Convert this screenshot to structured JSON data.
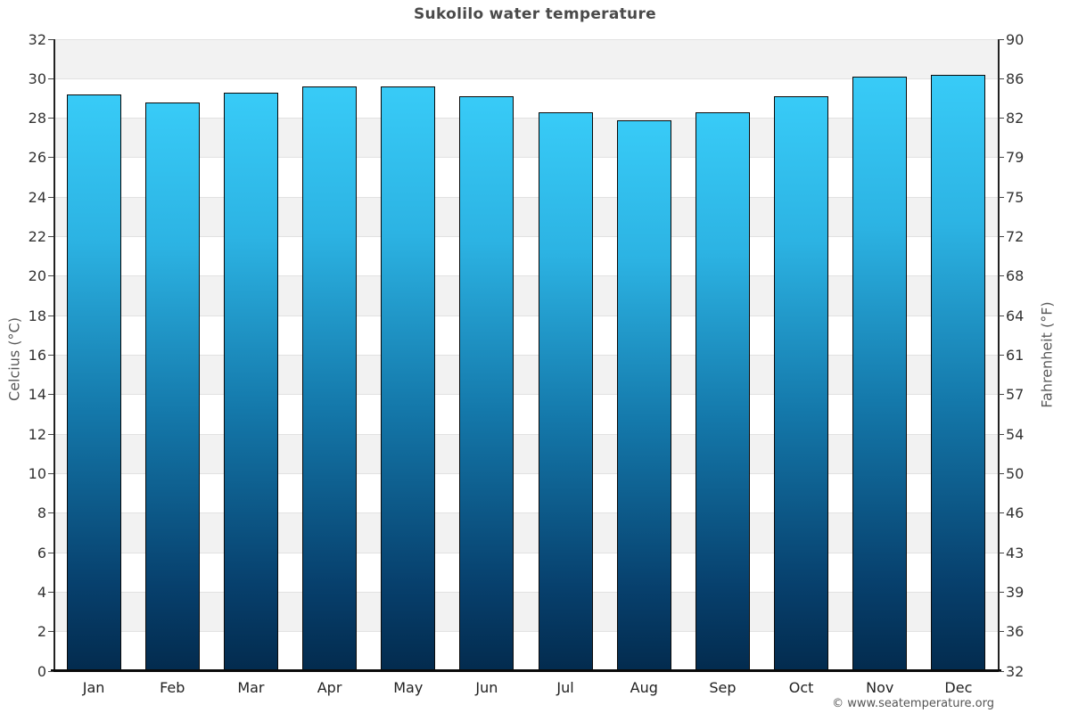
{
  "page": {
    "title": "Sukolilo water temperature",
    "copyright": "© www.seatemperature.org"
  },
  "chart_data": {
    "type": "bar",
    "title": "Sukolilo water temperature",
    "categories": [
      "Jan",
      "Feb",
      "Mar",
      "Apr",
      "May",
      "Jun",
      "Jul",
      "Aug",
      "Sep",
      "Oct",
      "Nov",
      "Dec"
    ],
    "values": [
      29.2,
      28.8,
      29.3,
      29.6,
      29.6,
      29.1,
      28.3,
      27.9,
      28.3,
      29.1,
      30.1,
      30.2
    ],
    "xlabel": "",
    "ylabel_left": "Celcius (°C)",
    "ylabel_right": "Fahrenheit (°F)",
    "ylim": [
      0,
      32
    ],
    "yticks_celsius": [
      0,
      2,
      4,
      6,
      8,
      10,
      12,
      14,
      16,
      18,
      20,
      22,
      24,
      26,
      28,
      30,
      32
    ],
    "ytick_labels_fahrenheit": [
      "32",
      "36",
      "39",
      "43",
      "46",
      "50",
      "54",
      "57",
      "61",
      "64",
      "68",
      "72",
      "75",
      "79",
      "82",
      "86",
      "90"
    ],
    "grid": "horizontal-bands",
    "legend": "none",
    "colors": {
      "bar_gradient_top": "#38cbf7",
      "bar_gradient_upper": "#2cb3e3",
      "bar_gradient_mid": "#1478aa",
      "bar_gradient_lower": "#07406d",
      "bar_gradient_bottom": "#032b4e",
      "bar_border": "#0a0a0a",
      "band_gray": "#f2f2f2",
      "band_white": "#ffffff",
      "gridline": "#e2e2e2",
      "axis_line": "#0a0a0a",
      "tick_text": "#333333",
      "title_text": "#4a4a4a",
      "axis_title_text": "#595959"
    }
  }
}
